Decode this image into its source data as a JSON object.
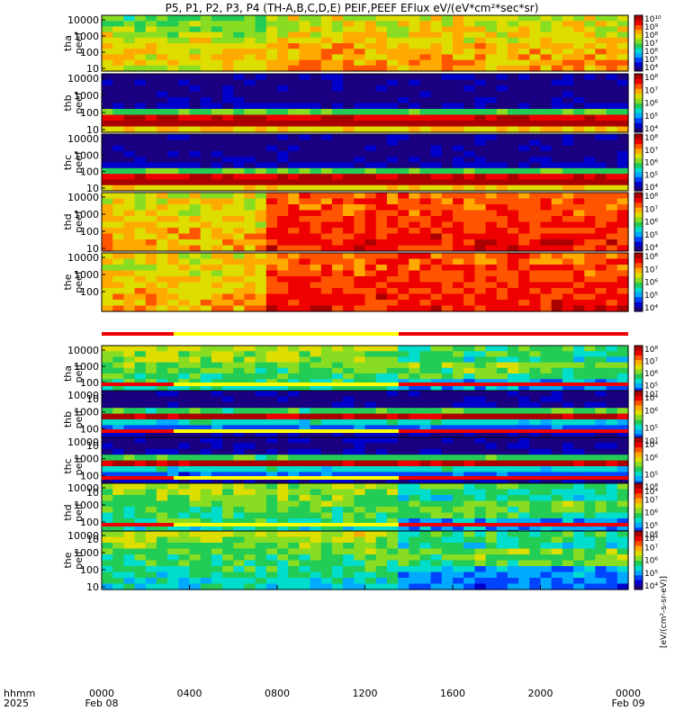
{
  "chart_data": {
    "type": "heatmap",
    "title": "P5, P1, P2, P3, P4 (TH-A,B,C,D,E) PEIF,PEEF EFlux eV/(eV*cm²*sec*sr)",
    "colorbar_label": "[eV/(cm²-s-sr-eV)]",
    "x_axis": {
      "row_label_1": "hhmm",
      "row_label_2": "2025",
      "tick_labels": [
        "0000",
        "0400",
        "0800",
        "1200",
        "1600",
        "2000",
        "0000"
      ],
      "date_labels": [
        "Feb 08",
        "",
        "",
        "",
        "",
        "",
        "Feb 09"
      ],
      "range_hours": [
        0,
        24
      ]
    },
    "panels": [
      {
        "ylabel_1": "tha",
        "ylabel_2": "peef",
        "yticks": [
          "10",
          "100",
          "1000",
          "10000"
        ],
        "cb_ticks": [
          "10⁴",
          "10⁵",
          "10⁶",
          "10⁷",
          "10⁸",
          "10⁹",
          "10¹⁰"
        ],
        "dominant_colors": [
          "#22bb22",
          "#ccdd22",
          "#ff4400"
        ]
      },
      {
        "ylabel_1": "thb",
        "ylabel_2": "peef",
        "yticks": [
          "10",
          "100",
          "1000",
          "10000"
        ],
        "cb_ticks": [
          "10⁴",
          "10⁵",
          "10⁶",
          "10⁷",
          "10⁸"
        ],
        "dominant_colors": [
          "#0000aa",
          "#ff0000",
          "#ffff00"
        ]
      },
      {
        "ylabel_1": "thc",
        "ylabel_2": "peef",
        "yticks": [
          "10",
          "100",
          "1000",
          "10000"
        ],
        "cb_ticks": [
          "10⁴",
          "10⁵",
          "10⁶",
          "10⁷",
          "10⁸"
        ],
        "dominant_colors": [
          "#000088",
          "#ff0000",
          "#ffff00"
        ]
      },
      {
        "ylabel_1": "thd",
        "ylabel_2": "peef",
        "yticks": [
          "10",
          "100",
          "1000",
          "10000"
        ],
        "cb_ticks": [
          "10⁴",
          "10⁵",
          "10⁶",
          "10⁷",
          "10⁸"
        ],
        "dominant_colors": [
          "#ffaa00",
          "#ff0000",
          "#990000"
        ]
      },
      {
        "ylabel_1": "the",
        "ylabel_2": "peef",
        "yticks": [
          "100",
          "1000",
          "10000"
        ],
        "cb_ticks": [
          "10⁴",
          "10⁵",
          "10⁶",
          "10⁷",
          "10⁸"
        ],
        "dominant_colors": [
          "#ffaa00",
          "#ff0000",
          "#990000"
        ]
      },
      {
        "ylabel_1": "tha",
        "ylabel_2": "peif",
        "yticks": [
          "10",
          "100",
          "1000",
          "10000"
        ],
        "cb_ticks": [
          "10⁴",
          "10⁵",
          "10⁶",
          "10⁷",
          "10⁸"
        ],
        "dominant_colors": [
          "#22ccaa",
          "#2255ff",
          "#ffff00"
        ]
      },
      {
        "ylabel_1": "thb",
        "ylabel_2": "peif",
        "yticks": [
          "10",
          "100",
          "1000",
          "10000"
        ],
        "cb_ticks": [
          "10⁴",
          "10⁵",
          "10⁶",
          "10⁷"
        ],
        "dominant_colors": [
          "#0000aa",
          "#ff4400",
          "#ffcc00"
        ]
      },
      {
        "ylabel_1": "thc",
        "ylabel_2": "peif",
        "yticks": [
          "10",
          "100",
          "1000",
          "10000"
        ],
        "cb_ticks": [
          "10⁴",
          "10⁵",
          "10⁶",
          "10⁷"
        ],
        "dominant_colors": [
          "#0000aa",
          "#ff4400",
          "#ffcc00"
        ]
      },
      {
        "ylabel_1": "thd",
        "ylabel_2": "peif",
        "yticks": [
          "10",
          "100",
          "1000",
          "10000"
        ],
        "cb_ticks": [
          "10⁴",
          "10⁵",
          "10⁶",
          "10⁷",
          "10⁸"
        ],
        "dominant_colors": [
          "#22ccaa",
          "#2255ff",
          "#ffff00"
        ]
      },
      {
        "ylabel_1": "the",
        "ylabel_2": "peif",
        "yticks": [
          "10",
          "100",
          "1000",
          "10000"
        ],
        "cb_ticks": [
          "10⁴",
          "10⁵",
          "10⁶",
          "10⁷",
          "10⁸"
        ],
        "dominant_colors": [
          "#22ccaa",
          "#2255ff",
          "#ffff00"
        ]
      }
    ],
    "colors": {
      "frame": "#000000",
      "background": "#ffffff",
      "bar_red": "#ee0000",
      "bar_yellow": "#ffff00"
    }
  }
}
